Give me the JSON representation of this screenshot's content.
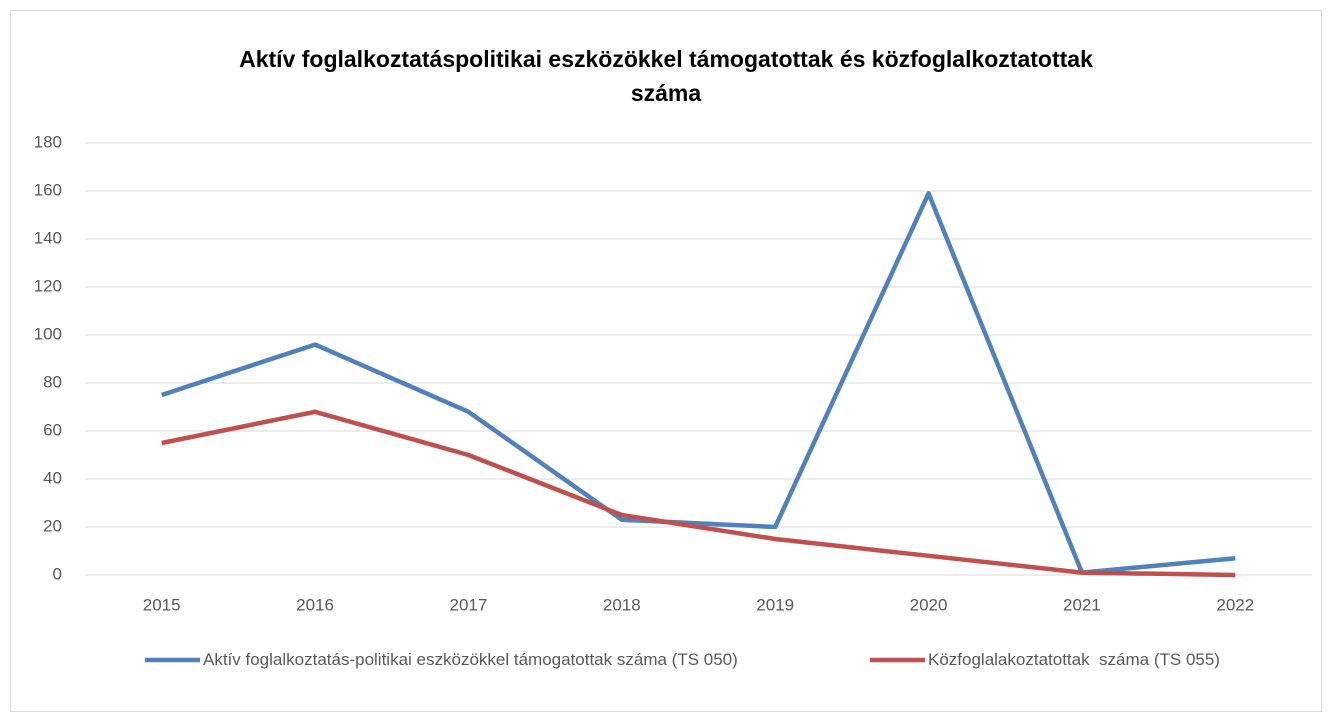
{
  "chart_data": {
    "type": "line",
    "title": "Aktív foglalkoztatáspolitikai eszközökkel támogatottak és közfoglalkoztatottak száma",
    "categories": [
      "2015",
      "2016",
      "2017",
      "2018",
      "2019",
      "2020",
      "2021",
      "2022"
    ],
    "series": [
      {
        "name": "Aktív foglalkoztatás-politikai eszközökkel támogatottak száma (TS 050)",
        "color": "#4f81bd",
        "values": [
          75,
          96,
          68,
          23,
          20,
          159,
          1,
          7
        ]
      },
      {
        "name": "Közfoglalakoztatottak  száma (TS 055)",
        "color": "#c0504d",
        "values": [
          55,
          68,
          50,
          25,
          15,
          8,
          1,
          0
        ]
      }
    ],
    "ylim": [
      0,
      180
    ],
    "yticks": [
      0,
      20,
      40,
      60,
      80,
      100,
      120,
      140,
      160,
      180
    ],
    "grid": true,
    "legend": "bottom"
  }
}
